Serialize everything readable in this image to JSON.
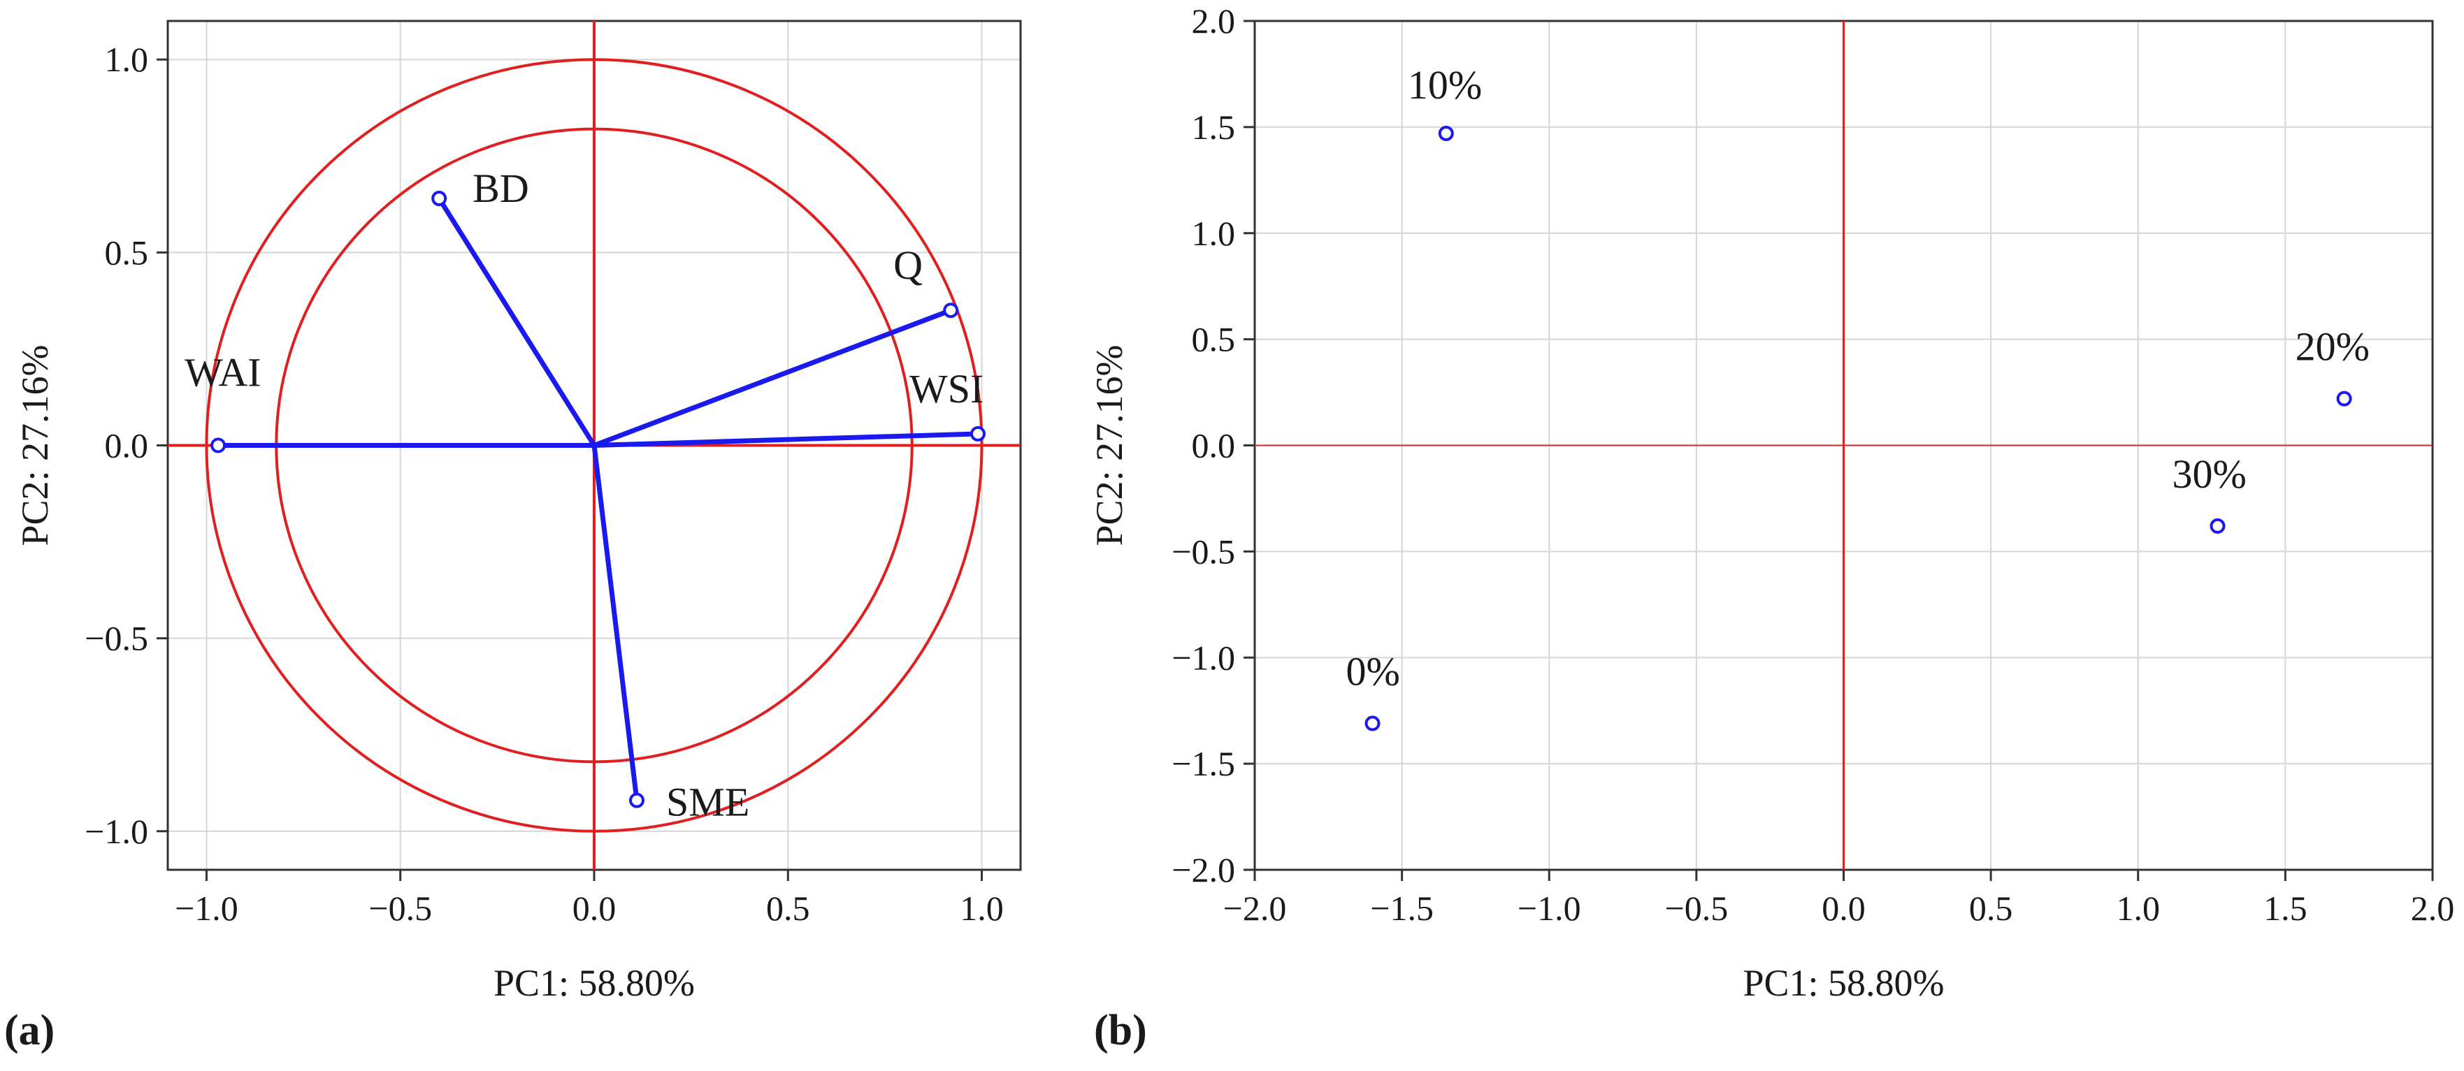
{
  "chart_data": [
    {
      "type": "scatter",
      "subtype": "pca-loadings",
      "panel_label": "(a)",
      "xlabel": "PC1: 58.80%",
      "ylabel": "PC2: 27.16%",
      "xlim": [
        -1.1,
        1.1
      ],
      "ylim": [
        -1.1,
        1.1
      ],
      "xticks": [
        -1.0,
        -0.5,
        0.0,
        0.5,
        1.0
      ],
      "xtick_labels": [
        "−1.0",
        "−0.5",
        "0.0",
        "0.5",
        "1.0"
      ],
      "yticks": [
        -1.0,
        -0.5,
        0.0,
        0.5,
        1.0
      ],
      "ytick_labels": [
        "−1.0",
        "−0.5",
        "0.0",
        "0.5",
        "1.0"
      ],
      "circles": [
        1.0,
        0.82
      ],
      "grid": true,
      "points": [
        {
          "label": "BD",
          "x": -0.4,
          "y": 0.64
        },
        {
          "label": "Q",
          "x": 0.92,
          "y": 0.35
        },
        {
          "label": "WSI",
          "x": 0.99,
          "y": 0.03
        },
        {
          "label": "WAI",
          "x": -0.97,
          "y": 0.0
        },
        {
          "label": "SME",
          "x": 0.11,
          "y": -0.92
        }
      ]
    },
    {
      "type": "scatter",
      "subtype": "pca-scores",
      "panel_label": "(b)",
      "xlabel": "PC1: 58.80%",
      "ylabel": "PC2: 27.16%",
      "xlim": [
        -2.0,
        2.0
      ],
      "ylim": [
        -2.0,
        2.0
      ],
      "xticks": [
        -2.0,
        -1.5,
        -1.0,
        -0.5,
        0.0,
        0.5,
        1.0,
        1.5,
        2.0
      ],
      "xtick_labels": [
        "−2.0",
        "−1.5",
        "−1.0",
        "−0.5",
        "0.0",
        "0.5",
        "1.0",
        "1.5",
        "2.0"
      ],
      "yticks": [
        -2.0,
        -1.5,
        -1.0,
        -0.5,
        0.0,
        0.5,
        1.0,
        1.5,
        2.0
      ],
      "ytick_labels": [
        "−2.0",
        "−1.5",
        "−1.0",
        "−0.5",
        "0.0",
        "0.5",
        "1.0",
        "1.5",
        "2.0"
      ],
      "grid": true,
      "points": [
        {
          "label": "10%",
          "x": -1.35,
          "y": 1.47
        },
        {
          "label": "20%",
          "x": 1.7,
          "y": 0.22
        },
        {
          "label": "30%",
          "x": 1.27,
          "y": -0.38
        },
        {
          "label": "0%",
          "x": -1.6,
          "y": -1.31
        }
      ]
    }
  ],
  "colors": {
    "axis_red": "#e02020",
    "vector_blue": "#1a1aee",
    "grid": "#d6d6d6",
    "frame": "#333333"
  }
}
